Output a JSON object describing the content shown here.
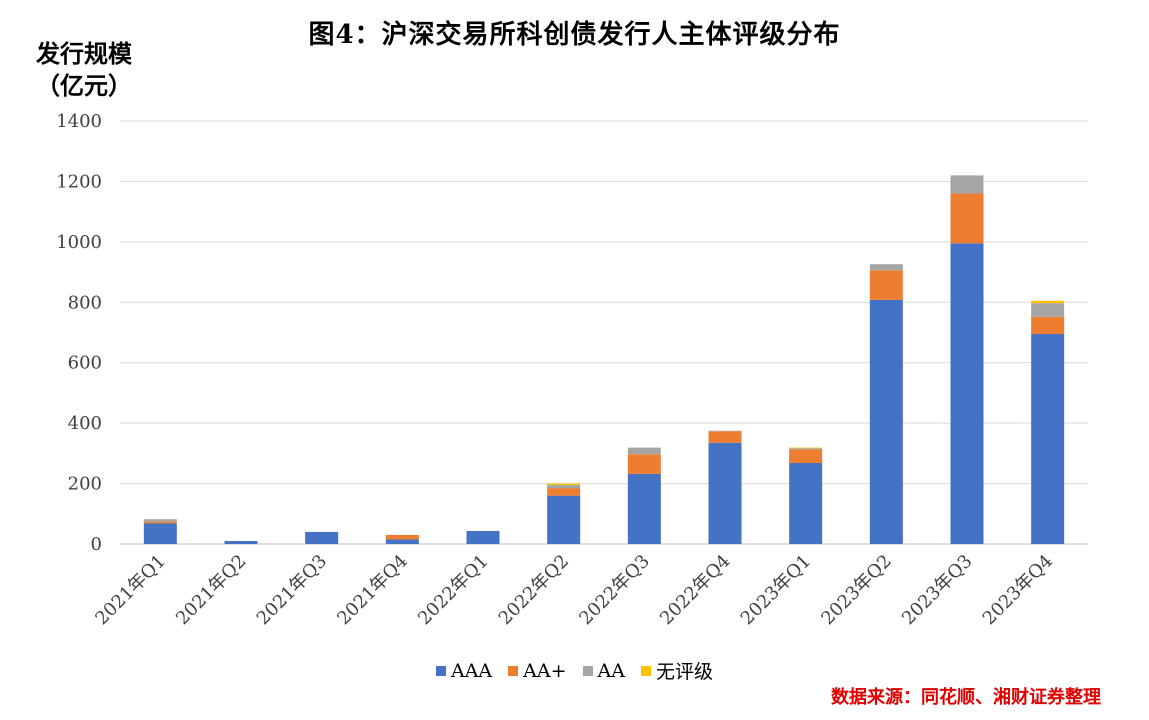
{
  "chart_data": {
    "type": "bar",
    "stacked": true,
    "title": "图4：沪深交易所科创债发行人主体评级分布",
    "ylabel_line1": "发行规模",
    "ylabel_line2": "（亿元）",
    "xlabel": "",
    "ylim": [
      0,
      1400
    ],
    "yticks": [
      0,
      200,
      400,
      600,
      800,
      1000,
      1200,
      1400
    ],
    "grid": true,
    "legend_position": "bottom",
    "categories": [
      "2021年Q1",
      "2021年Q2",
      "2021年Q3",
      "2021年Q4",
      "2022年Q1",
      "2022年Q2",
      "2022年Q3",
      "2022年Q4",
      "2023年Q1",
      "2023年Q2",
      "2023年Q3",
      "2023年Q4"
    ],
    "series": [
      {
        "name": "AAA",
        "color": "#4472C4",
        "values": [
          68,
          10,
          40,
          15,
          43,
          160,
          232,
          335,
          268,
          808,
          995,
          695
        ]
      },
      {
        "name": "AA+",
        "color": "#ED7D31",
        "values": [
          6,
          0,
          0,
          15,
          0,
          25,
          65,
          38,
          45,
          98,
          165,
          57
        ]
      },
      {
        "name": "AA",
        "color": "#A5A5A5",
        "values": [
          8,
          0,
          0,
          0,
          0,
          10,
          22,
          2,
          4,
          20,
          60,
          45
        ]
      },
      {
        "name": "无评级",
        "color": "#FFC000",
        "values": [
          0,
          0,
          0,
          0,
          0,
          5,
          0,
          0,
          2,
          0,
          0,
          8
        ]
      }
    ],
    "source": "数据来源：同花顺、湘财证券整理"
  }
}
